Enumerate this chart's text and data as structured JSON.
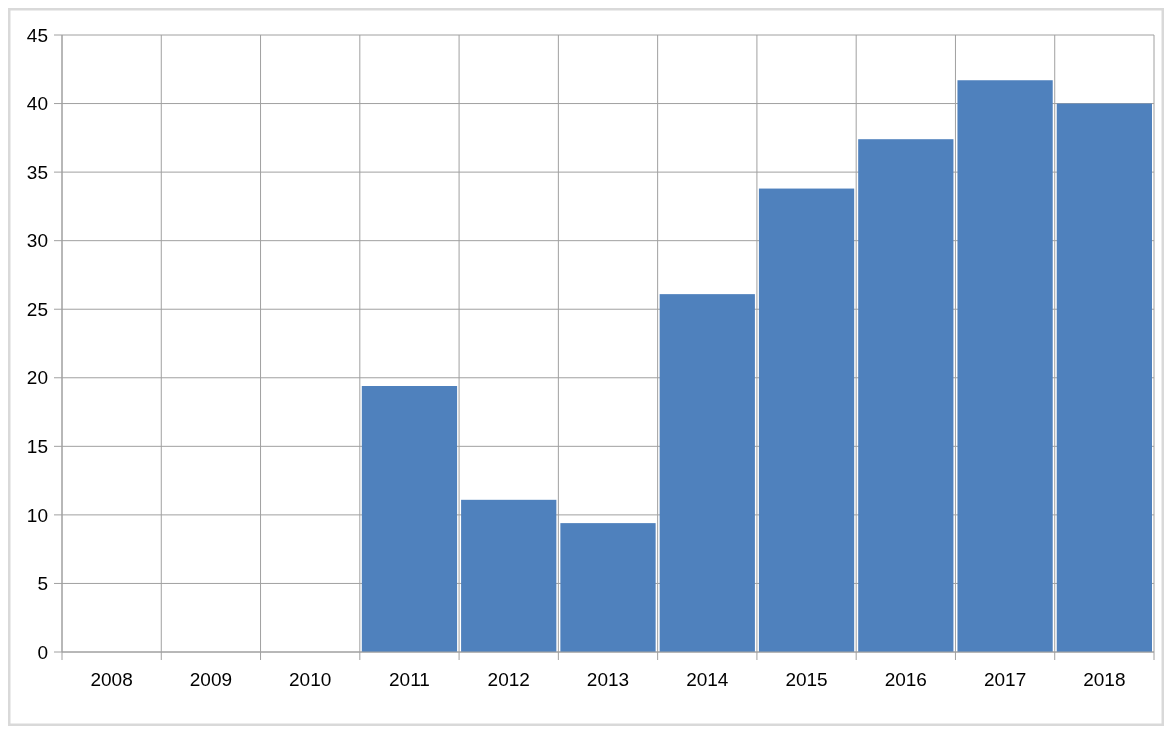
{
  "chart_data": {
    "type": "bar",
    "categories": [
      "2008",
      "2009",
      "2010",
      "2011",
      "2012",
      "2013",
      "2014",
      "2015",
      "2016",
      "2017",
      "2018"
    ],
    "values": [
      null,
      null,
      null,
      19.4,
      11.1,
      9.4,
      26.1,
      33.8,
      37.4,
      41.7,
      40.0
    ],
    "color": "#4f81bd",
    "ylim": [
      0,
      45
    ],
    "yticks": [
      0,
      5,
      10,
      15,
      20,
      25,
      30,
      35,
      40,
      45
    ],
    "grid": true
  }
}
